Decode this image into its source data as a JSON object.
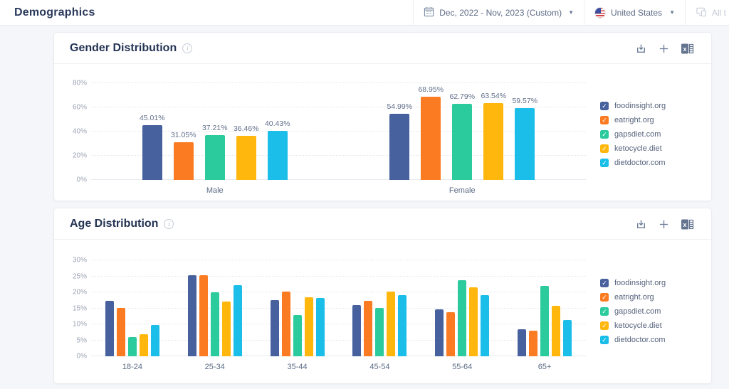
{
  "header": {
    "title": "Demographics",
    "date_range": "Dec, 2022 - Nov, 2023 (Custom)",
    "country": "United States",
    "traffic_filter": "All t"
  },
  "cards": {
    "toolbar_icons": [
      "download-icon",
      "add-compare-icon",
      "excel-export-icon"
    ]
  },
  "chart_data": [
    {
      "type": "bar",
      "title": "Gender Distribution",
      "categories": [
        "Male",
        "Female"
      ],
      "series": [
        {
          "name": "foodinsight.org",
          "color": "#47619E",
          "values": [
            45.01,
            54.99
          ]
        },
        {
          "name": "eatright.org",
          "color": "#FB7B22",
          "values": [
            31.05,
            68.95
          ]
        },
        {
          "name": "gapsdiet.com",
          "color": "#2CCB9D",
          "values": [
            37.21,
            62.79
          ]
        },
        {
          "name": "ketocycle.diet",
          "color": "#FFB70D",
          "values": [
            36.46,
            63.54
          ]
        },
        {
          "name": "dietdoctor.com",
          "color": "#1ABEE9",
          "values": [
            40.43,
            59.57
          ]
        }
      ],
      "ylim": [
        0,
        80
      ],
      "yticks": [
        0,
        20,
        40,
        60,
        80
      ],
      "value_labels": true,
      "grid": "dotted-horizontal",
      "legend_position": "right"
    },
    {
      "type": "bar",
      "title": "Age Distribution",
      "categories": [
        "18-24",
        "25-34",
        "35-44",
        "45-54",
        "55-64",
        "65+"
      ],
      "series": [
        {
          "name": "foodinsight.org",
          "color": "#47619E",
          "values": [
            17.3,
            25.4,
            17.6,
            16.0,
            14.6,
            8.5
          ]
        },
        {
          "name": "eatright.org",
          "color": "#FB7B22",
          "values": [
            15.1,
            25.4,
            20.2,
            17.4,
            13.7,
            7.9
          ]
        },
        {
          "name": "gapsdiet.com",
          "color": "#2CCB9D",
          "values": [
            5.9,
            20.1,
            12.9,
            15.1,
            23.7,
            22.0
          ]
        },
        {
          "name": "ketocycle.diet",
          "color": "#FFB70D",
          "values": [
            6.9,
            17.1,
            18.4,
            20.2,
            21.6,
            15.8
          ]
        },
        {
          "name": "dietdoctor.com",
          "color": "#1ABEE9",
          "values": [
            9.8,
            22.3,
            18.3,
            19.2,
            19.1,
            11.3
          ]
        }
      ],
      "ylim": [
        0,
        30
      ],
      "yticks": [
        0,
        5,
        10,
        15,
        20,
        25,
        30
      ],
      "value_labels": false,
      "grid": "dotted-horizontal",
      "legend_position": "right"
    }
  ]
}
